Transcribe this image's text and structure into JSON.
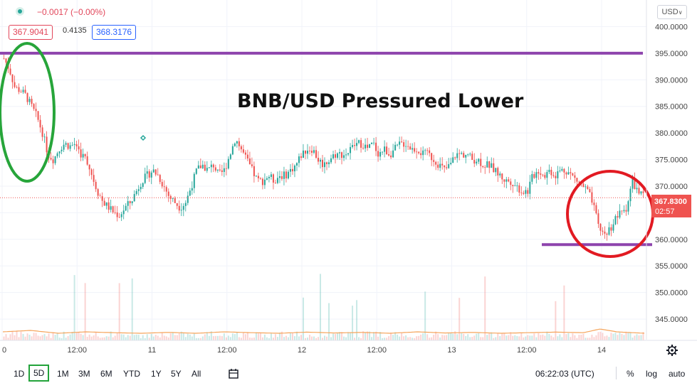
{
  "header": {
    "change": "−0.0017 (−0.00%)",
    "bid": "367.9041",
    "spread": "0.4135",
    "ask": "368.3176",
    "currency": "USD"
  },
  "chart_data": {
    "type": "candlestick",
    "title": "BNB/USD Pressured Lower",
    "ylim": [
      341,
      405
    ],
    "y_ticks": [
      "400.0000",
      "395.0000",
      "390.0000",
      "385.0000",
      "380.0000",
      "375.0000",
      "370.0000",
      "365.0000",
      "360.0000",
      "355.0000",
      "350.0000",
      "345.0000"
    ],
    "x_ticks": [
      "0",
      "12:00",
      "11",
      "12:00",
      "12",
      "12:00",
      "13",
      "12:00",
      "14"
    ],
    "last_price": "367.8300",
    "countdown": "02:57",
    "resistance": 395.0,
    "support": 359.0,
    "price_path": [
      [
        0,
        394
      ],
      [
        1,
        392
      ],
      [
        2,
        388.5
      ],
      [
        3,
        388
      ],
      [
        4,
        387
      ],
      [
        5,
        385
      ],
      [
        6,
        383
      ],
      [
        7,
        380
      ],
      [
        8,
        376
      ],
      [
        9,
        375
      ],
      [
        10,
        377
      ],
      [
        11,
        378
      ],
      [
        12,
        377.5
      ],
      [
        13,
        378
      ],
      [
        14,
        376
      ],
      [
        15,
        375
      ],
      [
        16,
        372
      ],
      [
        17,
        369
      ],
      [
        18,
        367
      ],
      [
        19,
        366
      ],
      [
        20,
        365
      ],
      [
        21,
        364.5
      ],
      [
        22,
        366
      ],
      [
        23,
        367
      ],
      [
        24,
        369
      ],
      [
        25,
        371
      ],
      [
        26,
        372
      ],
      [
        27,
        373
      ],
      [
        28,
        372
      ],
      [
        29,
        370
      ],
      [
        30,
        368
      ],
      [
        31,
        367
      ],
      [
        32,
        366
      ],
      [
        33,
        367
      ],
      [
        34,
        370
      ],
      [
        35,
        373
      ],
      [
        36,
        374
      ],
      [
        37,
        373
      ],
      [
        38,
        374
      ],
      [
        39,
        372
      ],
      [
        40,
        373
      ],
      [
        41,
        376
      ],
      [
        42,
        379
      ],
      [
        43,
        377
      ],
      [
        44,
        375
      ],
      [
        45,
        373
      ],
      [
        46,
        371
      ],
      [
        47,
        371
      ],
      [
        48,
        372
      ],
      [
        49,
        371
      ],
      [
        50,
        372
      ],
      [
        51,
        372
      ],
      [
        52,
        373
      ],
      [
        53,
        374
      ],
      [
        54,
        376
      ],
      [
        55,
        377
      ],
      [
        56,
        377
      ],
      [
        57,
        375
      ],
      [
        58,
        374
      ],
      [
        59,
        375
      ],
      [
        60,
        376
      ],
      [
        61,
        376
      ],
      [
        62,
        376
      ],
      [
        63,
        377
      ],
      [
        64,
        378
      ],
      [
        65,
        378
      ],
      [
        66,
        377
      ],
      [
        67,
        378
      ],
      [
        68,
        376
      ],
      [
        69,
        377
      ],
      [
        70,
        376
      ],
      [
        71,
        377
      ],
      [
        72,
        378
      ],
      [
        73,
        378
      ],
      [
        74,
        377
      ],
      [
        75,
        377
      ],
      [
        76,
        376
      ],
      [
        77,
        376
      ],
      [
        78,
        375
      ],
      [
        79,
        374
      ],
      [
        80,
        373
      ],
      [
        81,
        374
      ],
      [
        82,
        376
      ],
      [
        83,
        376
      ],
      [
        84,
        376
      ],
      [
        85,
        375
      ],
      [
        86,
        375
      ],
      [
        87,
        374
      ],
      [
        88,
        374
      ],
      [
        89,
        373
      ],
      [
        90,
        372
      ],
      [
        91,
        371
      ],
      [
        92,
        371
      ],
      [
        93,
        370
      ],
      [
        94,
        369
      ],
      [
        95,
        369
      ],
      [
        96,
        372
      ],
      [
        97,
        373
      ],
      [
        98,
        372
      ],
      [
        99,
        373
      ],
      [
        100,
        372
      ],
      [
        101,
        373
      ],
      [
        102,
        373
      ],
      [
        103,
        372
      ],
      [
        104,
        371
      ],
      [
        105,
        370
      ],
      [
        106,
        369
      ],
      [
        107,
        366
      ],
      [
        108,
        362
      ],
      [
        109,
        361
      ],
      [
        110,
        362
      ],
      [
        111,
        364
      ],
      [
        112,
        365
      ],
      [
        113,
        366
      ],
      [
        114,
        371
      ],
      [
        115,
        369
      ],
      [
        116,
        368
      ]
    ],
    "volume_path": [
      [
        0,
        2.5
      ],
      [
        5,
        3
      ],
      [
        10,
        2
      ],
      [
        15,
        2.5
      ],
      [
        20,
        2.2
      ],
      [
        25,
        2
      ],
      [
        30,
        2.3
      ],
      [
        35,
        2
      ],
      [
        40,
        2.5
      ],
      [
        45,
        2.2
      ],
      [
        50,
        2
      ],
      [
        55,
        2.4
      ],
      [
        60,
        2.1
      ],
      [
        65,
        2.3
      ],
      [
        70,
        2
      ],
      [
        75,
        2.5
      ],
      [
        80,
        2.1
      ],
      [
        85,
        2.3
      ],
      [
        90,
        2
      ],
      [
        95,
        2.2
      ],
      [
        100,
        2.4
      ],
      [
        105,
        2.2
      ],
      [
        108,
        3.5
      ],
      [
        111,
        2.5
      ],
      [
        116,
        2
      ]
    ]
  },
  "toolbar": {
    "timeframes": [
      "1D",
      "5D",
      "1M",
      "3M",
      "6M",
      "YTD",
      "1Y",
      "5Y",
      "All"
    ],
    "active": "5D",
    "clock": "06:22:03 (UTC)",
    "options": [
      "%",
      "log",
      "auto"
    ]
  }
}
